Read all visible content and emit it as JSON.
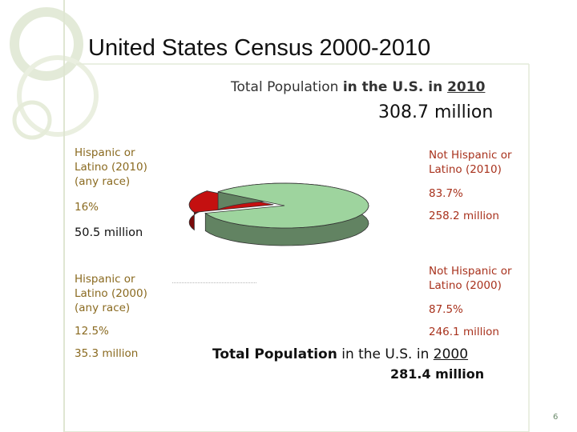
{
  "slide": {
    "title": "United States Census 2000-2010",
    "page_number": "6"
  },
  "top_heading": {
    "part1": "Total Population ",
    "part2": "in the U.S. in ",
    "year": "2010",
    "total": "308.7 million"
  },
  "bottom_heading": {
    "part1": "Total Population",
    "part2": " in the U.S. in ",
    "year": "2000",
    "total": "281.4 million"
  },
  "labels_2010": {
    "hispanic_line1": "Hispanic or",
    "hispanic_line2": "Latino (2010)",
    "hispanic_line3": "(any race)",
    "hispanic_pct": "16%",
    "hispanic_count": "50.5 million",
    "non_hispanic_line1": "Not Hispanic or",
    "non_hispanic_line2": "Latino (2010)",
    "non_hispanic_pct": "83.7%",
    "non_hispanic_count": "258.2 million"
  },
  "labels_2000": {
    "hispanic_line1": "Hispanic or",
    "hispanic_line2": "Latino (2000)",
    "hispanic_line3": "(any race)",
    "hispanic_pct": "12.5%",
    "hispanic_count": "35.3 million",
    "non_hispanic_line1": "Not Hispanic or",
    "non_hispanic_line2": "Latino (2000)",
    "non_hispanic_pct": "87.5%",
    "non_hispanic_count": "246.1 million"
  },
  "chart_data": {
    "type": "pie",
    "title": "Total Population in the U.S. in 2010",
    "categories": [
      "Hispanic or Latino (2010) (any race)",
      "Not Hispanic or Latino (2010)"
    ],
    "values": [
      16,
      83.7
    ],
    "colors": [
      "#c41010",
      "#9ed49e"
    ],
    "exploded": [
      true,
      false
    ],
    "three_d": true
  },
  "colors": {
    "hispanic_text": "#8a6a20",
    "non_hispanic_text": "#a8321d",
    "pie_hispanic": "#c41010",
    "pie_non_hispanic": "#9ed49e",
    "decoration": "#d9e3c8"
  }
}
